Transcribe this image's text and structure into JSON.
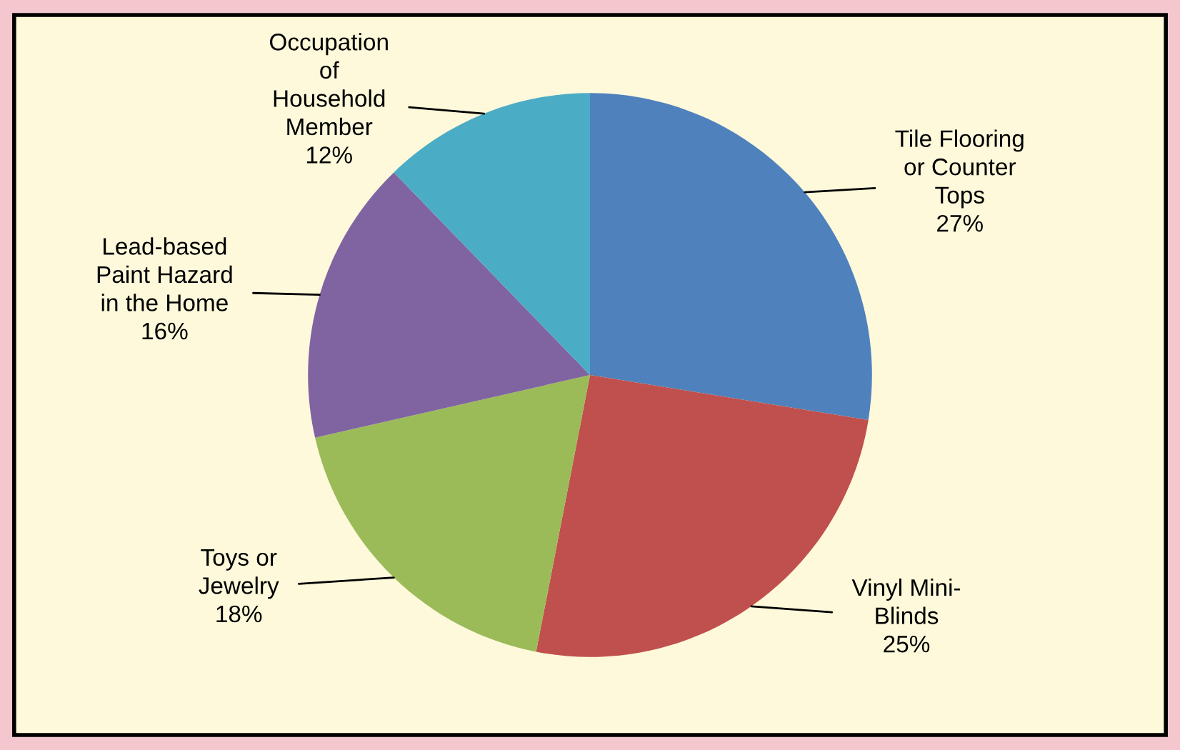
{
  "chart_data": {
    "type": "pie",
    "categories": [
      "Tile Flooring\nor Counter\nTops",
      "Vinyl Mini-\nBlinds",
      "Toys or\nJewelry",
      "Lead-based\nPaint Hazard\nin the Home",
      "Occupation\nof\nHousehold\nMember"
    ],
    "values": [
      27,
      25,
      18,
      16,
      12
    ],
    "value_labels": [
      "27%",
      "25%",
      "18%",
      "16%",
      "12%"
    ],
    "colors": [
      "#4f81bd",
      "#c0504d",
      "#9bbb59",
      "#8064a2",
      "#4bacc6"
    ],
    "legend": false
  }
}
